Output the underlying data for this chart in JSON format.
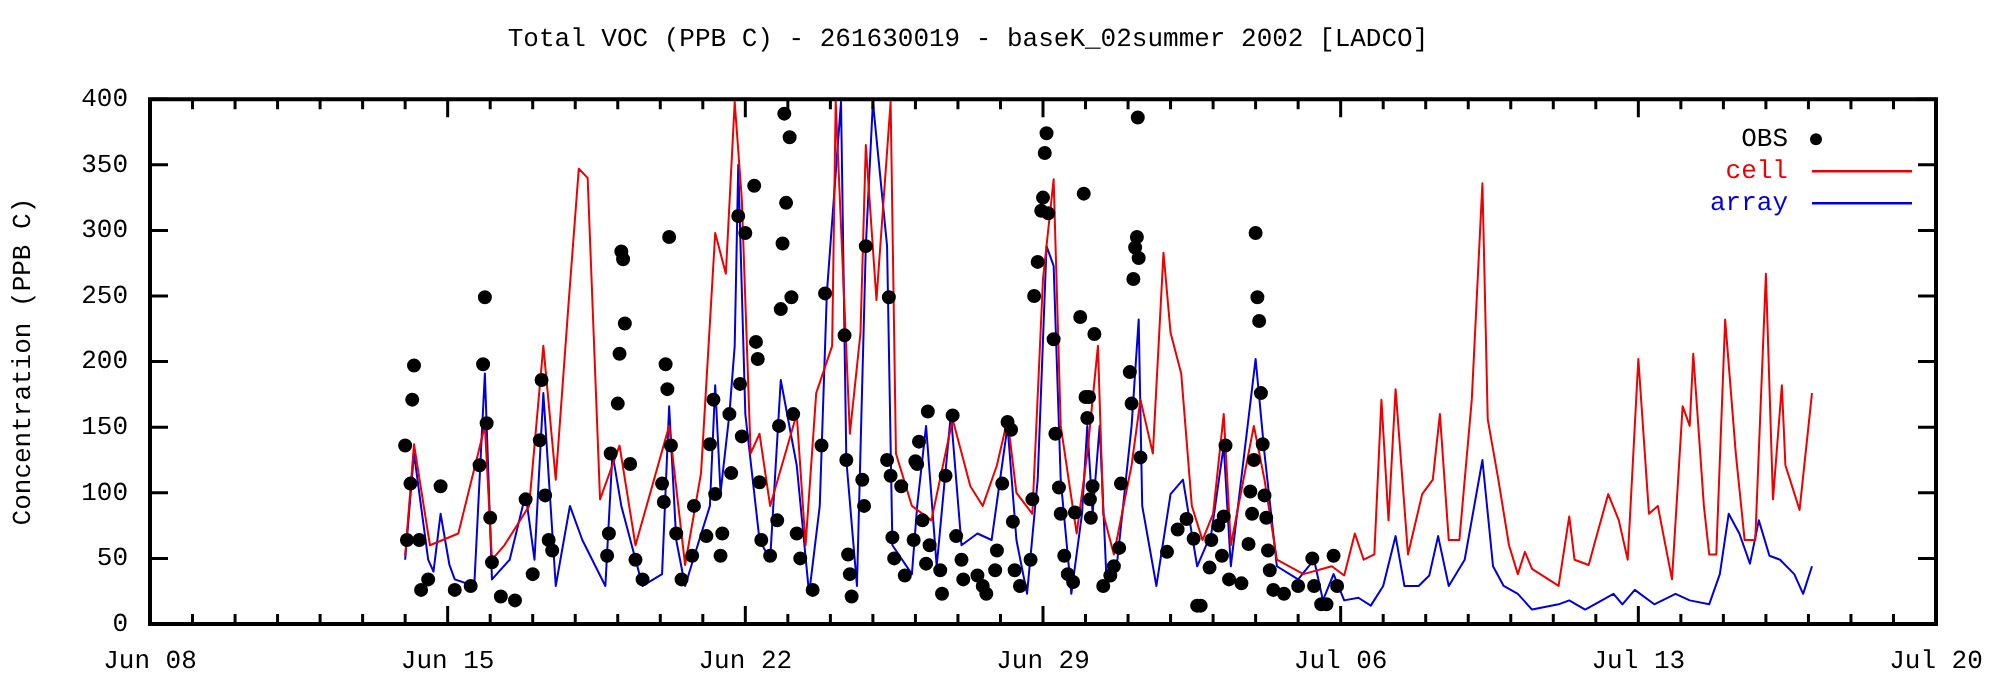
{
  "chart_data": {
    "type": "line",
    "title": "Total VOC (PPB C) - 261630019 - baseK_02summer 2002 [LADCO]",
    "ylabel": "Concentration (PPB C)",
    "legend": "top right",
    "xlim": [
      "2002-06-08",
      "2002-07-20"
    ],
    "ylim": [
      0,
      400
    ],
    "yticks": [
      0,
      50,
      100,
      150,
      200,
      250,
      300,
      350,
      400
    ],
    "xticks": [
      {
        "value": "2002-06-08",
        "label": "Jun 08"
      },
      {
        "value": "2002-06-09",
        "label": null
      },
      {
        "value": "2002-06-10",
        "label": null
      },
      {
        "value": "2002-06-11",
        "label": null
      },
      {
        "value": "2002-06-12",
        "label": null
      },
      {
        "value": "2002-06-13",
        "label": null
      },
      {
        "value": "2002-06-14",
        "label": null
      },
      {
        "value": "2002-06-15",
        "label": "Jun 15"
      },
      {
        "value": "2002-06-16",
        "label": null
      },
      {
        "value": "2002-06-17",
        "label": null
      },
      {
        "value": "2002-06-18",
        "label": null
      },
      {
        "value": "2002-06-19",
        "label": null
      },
      {
        "value": "2002-06-20",
        "label": null
      },
      {
        "value": "2002-06-21",
        "label": null
      },
      {
        "value": "2002-06-22",
        "label": "Jun 22"
      },
      {
        "value": "2002-06-23",
        "label": null
      },
      {
        "value": "2002-06-24",
        "label": null
      },
      {
        "value": "2002-06-25",
        "label": null
      },
      {
        "value": "2002-06-26",
        "label": null
      },
      {
        "value": "2002-06-27",
        "label": null
      },
      {
        "value": "2002-06-28",
        "label": null
      },
      {
        "value": "2002-06-29",
        "label": "Jun 29"
      },
      {
        "value": "2002-06-30",
        "label": null
      },
      {
        "value": "2002-07-01",
        "label": null
      },
      {
        "value": "2002-07-02",
        "label": null
      },
      {
        "value": "2002-07-03",
        "label": null
      },
      {
        "value": "2002-07-04",
        "label": null
      },
      {
        "value": "2002-07-05",
        "label": null
      },
      {
        "value": "2002-07-06",
        "label": "Jul 06"
      },
      {
        "value": "2002-07-07",
        "label": null
      },
      {
        "value": "2002-07-08",
        "label": null
      },
      {
        "value": "2002-07-09",
        "label": null
      },
      {
        "value": "2002-07-10",
        "label": null
      },
      {
        "value": "2002-07-11",
        "label": null
      },
      {
        "value": "2002-07-12",
        "label": null
      },
      {
        "value": "2002-07-13",
        "label": "Jul 13"
      },
      {
        "value": "2002-07-14",
        "label": null
      },
      {
        "value": "2002-07-15",
        "label": null
      },
      {
        "value": "2002-07-16",
        "label": null
      },
      {
        "value": "2002-07-17",
        "label": null
      },
      {
        "value": "2002-07-18",
        "label": null
      },
      {
        "value": "2002-07-19",
        "label": null
      },
      {
        "value": "2002-07-20",
        "label": "Jul 20"
      }
    ],
    "series": [
      {
        "name": "OBS",
        "type": "scatter",
        "marker": "circle",
        "color": "#000000",
        "x": [
          "2002-06-14T00:00",
          "2002-06-14T01:00",
          "2002-06-14T03:00",
          "2002-06-14T04:00",
          "2002-06-14T05:00",
          "2002-06-14T08:00",
          "2002-06-14T09:00",
          "2002-06-14T13:00",
          "2002-06-14T20:00",
          "2002-06-15T04:00",
          "2002-06-15T13:00",
          "2002-06-15T18:00",
          "2002-06-15T20:00",
          "2002-06-15T21:00",
          "2002-06-15T22:00",
          "2002-06-16T00:00",
          "2002-06-16T01:00",
          "2002-06-16T06:00",
          "2002-06-16T14:00",
          "2002-06-16T20:00",
          "2002-06-17T00:00",
          "2002-06-17T04:00",
          "2002-06-17T05:00",
          "2002-06-17T07:00",
          "2002-06-17T09:00",
          "2002-06-17T11:00",
          "2002-06-18T18:00",
          "2002-06-18T19:00",
          "2002-06-18T20:00",
          "2002-06-19T00:00",
          "2002-06-19T01:00",
          "2002-06-19T02:00",
          "2002-06-19T03:00",
          "2002-06-19T04:00",
          "2002-06-19T07:00",
          "2002-06-19T10:00",
          "2002-06-19T14:00",
          "2002-06-20T01:00",
          "2002-06-20T02:00",
          "2002-06-20T03:00",
          "2002-06-20T04:00",
          "2002-06-20T05:00",
          "2002-06-20T06:00",
          "2002-06-20T09:00",
          "2002-06-20T12:00",
          "2002-06-20T18:00",
          "2002-06-20T19:00",
          "2002-06-21T02:00",
          "2002-06-21T04:00",
          "2002-06-21T06:00",
          "2002-06-21T07:00",
          "2002-06-21T10:00",
          "2002-06-21T11:00",
          "2002-06-21T15:00",
          "2002-06-21T16:00",
          "2002-06-21T20:00",
          "2002-06-21T21:00",
          "2002-06-21T22:00",
          "2002-06-22T00:00",
          "2002-06-22T05:00",
          "2002-06-22T06:00",
          "2002-06-22T07:00",
          "2002-06-22T08:00",
          "2002-06-22T09:00",
          "2002-06-22T14:00",
          "2002-06-22T18:00",
          "2002-06-22T19:00",
          "2002-06-22T20:00",
          "2002-06-22T21:00",
          "2002-06-22T22:00",
          "2002-06-22T23:00",
          "2002-06-23T01:00",
          "2002-06-23T02:00",
          "2002-06-23T03:00",
          "2002-06-23T05:00",
          "2002-06-23T07:00",
          "2002-06-23T14:00",
          "2002-06-23T19:00",
          "2002-06-23T21:00",
          "2002-06-24T08:00",
          "2002-06-24T09:00",
          "2002-06-24T10:00",
          "2002-06-24T11:00",
          "2002-06-24T12:00",
          "2002-06-24T18:00",
          "2002-06-24T19:00",
          "2002-06-24T20:00",
          "2002-06-25T08:00",
          "2002-06-25T09:00",
          "2002-06-25T10:00",
          "2002-06-25T11:00",
          "2002-06-25T12:00",
          "2002-06-25T16:00",
          "2002-06-25T18:00",
          "2002-06-25T23:00",
          "2002-06-26T00:00",
          "2002-06-26T01:00",
          "2002-06-26T02:00",
          "2002-06-26T04:00",
          "2002-06-26T06:00",
          "2002-06-26T07:00",
          "2002-06-26T08:00",
          "2002-06-26T14:00",
          "2002-06-26T15:00",
          "2002-06-26T17:00",
          "2002-06-26T21:00",
          "2002-06-26T23:00",
          "2002-06-27T02:00",
          "2002-06-27T03:00",
          "2002-06-27T11:00",
          "2002-06-27T14:00",
          "2002-06-27T16:00",
          "2002-06-27T21:00",
          "2002-06-27T22:00",
          "2002-06-28T01:00",
          "2002-06-28T04:00",
          "2002-06-28T06:00",
          "2002-06-28T07:00",
          "2002-06-28T08:00",
          "2002-06-28T11:00",
          "2002-06-28T17:00",
          "2002-06-28T18:00",
          "2002-06-28T19:00",
          "2002-06-28T21:00",
          "2002-06-28T23:00",
          "2002-06-29T00:00",
          "2002-06-29T01:00",
          "2002-06-29T02:00",
          "2002-06-29T03:00",
          "2002-06-29T06:00",
          "2002-06-29T07:00",
          "2002-06-29T09:00",
          "2002-06-29T10:00",
          "2002-06-29T12:00",
          "2002-06-29T14:00",
          "2002-06-29T17:00",
          "2002-06-29T18:00",
          "2002-06-29T21:00",
          "2002-06-29T23:00",
          "2002-06-30T00:00",
          "2002-06-30T01:00",
          "2002-06-30T02:00",
          "2002-06-30T02:30",
          "2002-06-30T03:00",
          "2002-06-30T04:00",
          "2002-06-30T05:00",
          "2002-06-30T10:00",
          "2002-06-30T14:00",
          "2002-06-30T16:00",
          "2002-06-30T19:00",
          "2002-06-30T20:00",
          "2002-07-01T01:00",
          "2002-07-01T02:00",
          "2002-07-01T03:00",
          "2002-07-01T04:00",
          "2002-07-01T05:00",
          "2002-07-01T05:30",
          "2002-07-01T06:00",
          "2002-07-01T07:00",
          "2002-07-01T22:00",
          "2002-07-02T04:00",
          "2002-07-02T09:00",
          "2002-07-02T13:00",
          "2002-07-02T15:00",
          "2002-07-02T17:00",
          "2002-07-02T22:00",
          "2002-07-02T23:00",
          "2002-07-03T03:00",
          "2002-07-03T05:00",
          "2002-07-03T06:00",
          "2002-07-03T07:00",
          "2002-07-03T09:00",
          "2002-07-03T16:00",
          "2002-07-03T20:00",
          "2002-07-03T21:00",
          "2002-07-03T22:00",
          "2002-07-03T23:00",
          "2002-07-04T00:00",
          "2002-07-04T01:00",
          "2002-07-04T02:00",
          "2002-07-04T03:00",
          "2002-07-04T04:00",
          "2002-07-04T05:00",
          "2002-07-04T06:00",
          "2002-07-04T07:00",
          "2002-07-04T08:00",
          "2002-07-04T10:00",
          "2002-07-04T16:00",
          "2002-07-05T00:00",
          "2002-07-05T08:00",
          "2002-07-05T09:00",
          "2002-07-05T13:00",
          "2002-07-05T16:00",
          "2002-07-05T20:00",
          "2002-07-05T22:00"
        ],
        "values": [
          136,
          64,
          107,
          171,
          197,
          64,
          26,
          34,
          105,
          26,
          29,
          121,
          198,
          249,
          153,
          81,
          47,
          21,
          18,
          95,
          38,
          140,
          186,
          98,
          64,
          56,
          52,
          69,
          130,
          168,
          206,
          284,
          278,
          229,
          122,
          49,
          34,
          107,
          93,
          198,
          179,
          295,
          136,
          69,
          34,
          52,
          90,
          67,
          137,
          171,
          99,
          52,
          69,
          160,
          115,
          311,
          183,
          143,
          298,
          334,
          215,
          202,
          108,
          64,
          52,
          79,
          151,
          240,
          290,
          389,
          321,
          371,
          249,
          160,
          69,
          50,
          26,
          136,
          252,
          220,
          125,
          53,
          38,
          21,
          110,
          90,
          288,
          125,
          249,
          113,
          66,
          50,
          105,
          37,
          64,
          124,
          122,
          139,
          79,
          46,
          162,
          60,
          41,
          23,
          113,
          159,
          67,
          49,
          34,
          37,
          29,
          23,
          41,
          56,
          107,
          154,
          148,
          78,
          41,
          29,
          49,
          95,
          250,
          276,
          315,
          325,
          359,
          374,
          313,
          217,
          145,
          104,
          84,
          52,
          38,
          32,
          85,
          234,
          328,
          173,
          157,
          173,
          95,
          81,
          105,
          221,
          29,
          37,
          44,
          58,
          107,
          192,
          168,
          263,
          287,
          295,
          386,
          279,
          127,
          55,
          72,
          80,
          65,
          14,
          14,
          43,
          64,
          75,
          52,
          82,
          136,
          34,
          31,
          61,
          101,
          84,
          125,
          298,
          249,
          231,
          176,
          137,
          98,
          81,
          56,
          41,
          26,
          23,
          29,
          50,
          29,
          15,
          15,
          52,
          29
        ]
      },
      {
        "name": "cell",
        "type": "line",
        "marker": "none",
        "color": "#ee0000",
        "x": [
          "2002-06-14T00:00",
          "2002-06-14T05:00",
          "2002-06-14T14:00",
          "2002-06-15T06:00",
          "2002-06-15T21:00",
          "2002-06-16T01:00",
          "2002-06-16T08:00",
          "2002-06-16T22:00",
          "2002-06-17T06:00",
          "2002-06-17T13:00",
          "2002-06-17T20:00",
          "2002-06-18T02:00",
          "2002-06-18T07:00",
          "2002-06-18T14:00",
          "2002-06-19T01:00",
          "2002-06-19T10:00",
          "2002-06-20T05:00",
          "2002-06-20T14:00",
          "2002-06-20T23:00",
          "2002-06-21T07:00",
          "2002-06-21T13:00",
          "2002-06-21T18:00",
          "2002-06-21T22:00",
          "2002-06-22T03:00",
          "2002-06-22T08:00",
          "2002-06-22T14:00",
          "2002-06-23T05:00",
          "2002-06-23T10:00",
          "2002-06-23T16:00",
          "2002-06-24T01:00",
          "2002-06-24T03:00",
          "2002-06-24T11:00",
          "2002-06-24T17:00",
          "2002-06-24T20:00",
          "2002-06-25T02:00",
          "2002-06-25T10:00",
          "2002-06-25T13:00",
          "2002-06-25T22:00",
          "2002-06-26T09:00",
          "2002-06-26T21:00",
          "2002-06-27T07:00",
          "2002-06-27T14:00",
          "2002-06-27T22:00",
          "2002-06-28T04:00",
          "2002-06-28T09:00",
          "2002-06-28T18:00",
          "2002-06-29T00:00",
          "2002-06-29T06:00",
          "2002-06-29T10:00",
          "2002-06-29T19:00",
          "2002-06-30T01:00",
          "2002-06-30T07:00",
          "2002-06-30T10:00",
          "2002-06-30T16:00",
          "2002-07-01T02:00",
          "2002-07-01T07:00",
          "2002-07-01T14:00",
          "2002-07-01T20:00",
          "2002-07-02T00:00",
          "2002-07-02T06:00",
          "2002-07-02T12:00",
          "2002-07-02T18:00",
          "2002-07-03T00:00",
          "2002-07-03T06:00",
          "2002-07-03T10:00",
          "2002-07-03T23:00",
          "2002-07-04T05:00",
          "2002-07-04T12:00",
          "2002-07-05T03:00",
          "2002-07-05T19:00",
          "2002-07-06T02:00",
          "2002-07-06T08:00",
          "2002-07-06T13:00",
          "2002-07-06T19:00",
          "2002-07-06T23:00",
          "2002-07-07T03:00",
          "2002-07-07T07:00",
          "2002-07-07T14:00",
          "2002-07-07T22:00",
          "2002-07-08T04:00",
          "2002-07-08T08:00",
          "2002-07-08T13:00",
          "2002-07-08T19:00",
          "2002-07-09T02:00",
          "2002-07-09T08:00",
          "2002-07-09T11:00",
          "2002-07-09T17:00",
          "2002-07-09T23:00",
          "2002-07-10T04:00",
          "2002-07-10T08:00",
          "2002-07-10T12:00",
          "2002-07-11T03:00",
          "2002-07-11T09:00",
          "2002-07-11T12:00",
          "2002-07-11T20:00",
          "2002-07-11T23:00",
          "2002-07-12T07:00",
          "2002-07-12T13:00",
          "2002-07-12T18:00",
          "2002-07-13T00:00",
          "2002-07-13T06:00",
          "2002-07-13T11:00",
          "2002-07-13T19:00",
          "2002-07-14T01:00",
          "2002-07-14T05:00",
          "2002-07-14T07:00",
          "2002-07-14T13:00",
          "2002-07-14T16:00",
          "2002-07-14T20:00",
          "2002-07-15T01:00",
          "2002-07-15T07:00",
          "2002-07-15T12:00",
          "2002-07-15T18:00",
          "2002-07-16T00:00",
          "2002-07-16T04:00",
          "2002-07-16T09:00",
          "2002-07-16T11:00",
          "2002-07-16T19:00",
          "2002-07-17T02:00"
        ],
        "values": [
          52,
          137,
          60,
          69,
          151,
          49,
          60,
          90,
          212,
          110,
          240,
          347,
          340,
          95,
          136,
          60,
          151,
          45,
          115,
          298,
          267,
          398,
          324,
          130,
          145,
          90,
          160,
          60,
          176,
          212,
          398,
          145,
          222,
          365,
          247,
          398,
          130,
          90,
          79,
          156,
          105,
          90,
          121,
          156,
          100,
          84,
          263,
          339,
          151,
          69,
          130,
          212,
          84,
          53,
          121,
          171,
          130,
          283,
          222,
          191,
          90,
          64,
          84,
          160,
          60,
          151,
          110,
          49,
          38,
          44,
          37,
          69,
          49,
          53,
          171,
          79,
          179,
          53,
          99,
          110,
          160,
          64,
          64,
          171,
          336,
          156,
          110,
          60,
          38,
          55,
          42,
          29,
          82,
          49,
          45,
          60,
          99,
          79,
          49,
          202,
          84,
          90,
          34,
          166,
          151,
          206,
          90,
          53,
          53,
          232,
          130,
          64,
          64,
          267,
          95,
          182,
          121,
          87,
          176
        ]
      },
      {
        "name": "array",
        "type": "line",
        "marker": "none",
        "color": "#0000dd",
        "x": [
          "2002-06-14T00:00",
          "2002-06-14T05:00",
          "2002-06-14T13:00",
          "2002-06-14T16:00",
          "2002-06-14T20:00",
          "2002-06-15T01:00",
          "2002-06-15T04:00",
          "2002-06-15T15:00",
          "2002-06-15T21:00",
          "2002-06-16T01:00",
          "2002-06-16T11:00",
          "2002-06-16T20:00",
          "2002-06-17T01:00",
          "2002-06-17T06:00",
          "2002-06-17T13:00",
          "2002-06-17T21:00",
          "2002-06-18T04:00",
          "2002-06-18T17:00",
          "2002-06-18T21:00",
          "2002-06-19T02:00",
          "2002-06-19T14:00",
          "2002-06-20T01:00",
          "2002-06-20T05:00",
          "2002-06-20T09:00",
          "2002-06-20T14:00",
          "2002-06-20T22:00",
          "2002-06-21T04:00",
          "2002-06-21T07:00",
          "2002-06-21T10:00",
          "2002-06-21T15:00",
          "2002-06-21T18:00",
          "2002-06-21T20:00",
          "2002-06-22T00:00",
          "2002-06-22T08:00",
          "2002-06-22T14:00",
          "2002-06-22T20:00",
          "2002-06-23T05:00",
          "2002-06-23T12:00",
          "2002-06-23T18:00",
          "2002-06-23T22:00",
          "2002-06-24T06:00",
          "2002-06-24T09:00",
          "2002-06-24T15:00",
          "2002-06-24T20:00",
          "2002-06-25T00:00",
          "2002-06-25T08:00",
          "2002-06-25T11:00",
          "2002-06-25T22:00",
          "2002-06-26T01:00",
          "2002-06-26T06:00",
          "2002-06-26T12:00",
          "2002-06-26T20:00",
          "2002-06-27T02:00",
          "2002-06-27T11:00",
          "2002-06-27T19:00",
          "2002-06-28T04:00",
          "2002-06-28T09:00",
          "2002-06-28T15:00",
          "2002-06-28T21:00",
          "2002-06-29T02:00",
          "2002-06-29T06:00",
          "2002-06-29T10:00",
          "2002-06-29T16:00",
          "2002-06-29T22:00",
          "2002-06-30T01:00",
          "2002-06-30T04:00",
          "2002-06-30T08:00",
          "2002-06-30T12:00",
          "2002-06-30T18:00",
          "2002-07-01T02:00",
          "2002-07-01T06:00",
          "2002-07-01T08:00",
          "2002-07-01T16:00",
          "2002-07-02T00:00",
          "2002-07-02T07:00",
          "2002-07-02T15:00",
          "2002-07-02T23:00",
          "2002-07-03T06:00",
          "2002-07-03T10:00",
          "2002-07-04T00:00",
          "2002-07-04T05:00",
          "2002-07-04T12:00",
          "2002-07-05T00:00",
          "2002-07-05T09:00",
          "2002-07-05T14:00",
          "2002-07-05T20:00",
          "2002-07-06T02:00",
          "2002-07-06T10:00",
          "2002-07-06T17:00",
          "2002-07-07T00:00",
          "2002-07-07T07:00",
          "2002-07-07T12:00",
          "2002-07-07T20:00",
          "2002-07-08T02:00",
          "2002-07-08T07:00",
          "2002-07-08T13:00",
          "2002-07-08T22:00",
          "2002-07-09T08:00",
          "2002-07-09T14:00",
          "2002-07-09T20:00",
          "2002-07-10T04:00",
          "2002-07-10T12:00",
          "2002-07-11T03:00",
          "2002-07-11T09:00",
          "2002-07-11T18:00",
          "2002-07-12T10:00",
          "2002-07-12T15:00",
          "2002-07-12T22:00",
          "2002-07-13T09:00",
          "2002-07-13T21:00",
          "2002-07-14T05:00",
          "2002-07-14T16:00",
          "2002-07-14T22:00",
          "2002-07-15T03:00",
          "2002-07-15T09:00",
          "2002-07-15T15:00",
          "2002-07-15T20:00",
          "2002-07-16T02:00",
          "2002-07-16T08:00",
          "2002-07-16T16:00",
          "2002-07-16T21:00",
          "2002-07-17T02:00"
        ],
        "values": [
          49,
          130,
          49,
          40,
          84,
          45,
          34,
          29,
          191,
          34,
          49,
          99,
          49,
          176,
          29,
          90,
          64,
          29,
          130,
          90,
          29,
          38,
          166,
          64,
          29,
          64,
          90,
          182,
          100,
          160,
          212,
          350,
          160,
          64,
          49,
          186,
          121,
          23,
          90,
          252,
          398,
          125,
          29,
          288,
          398,
          288,
          60,
          38,
          90,
          151,
          44,
          160,
          60,
          69,
          64,
          151,
          64,
          23,
          110,
          288,
          273,
          110,
          23,
          84,
          151,
          84,
          151,
          29,
          49,
          151,
          232,
          90,
          29,
          99,
          110,
          44,
          69,
          136,
          44,
          202,
          130,
          44,
          34,
          49,
          18,
          38,
          18,
          20,
          14,
          29,
          67,
          29,
          29,
          37,
          67,
          29,
          49,
          125,
          44,
          29,
          23,
          11,
          15,
          18,
          11,
          23,
          15,
          26,
          15,
          23,
          18,
          15,
          38,
          84,
          69,
          46,
          79,
          52,
          49,
          38,
          23,
          44
        ]
      }
    ]
  }
}
